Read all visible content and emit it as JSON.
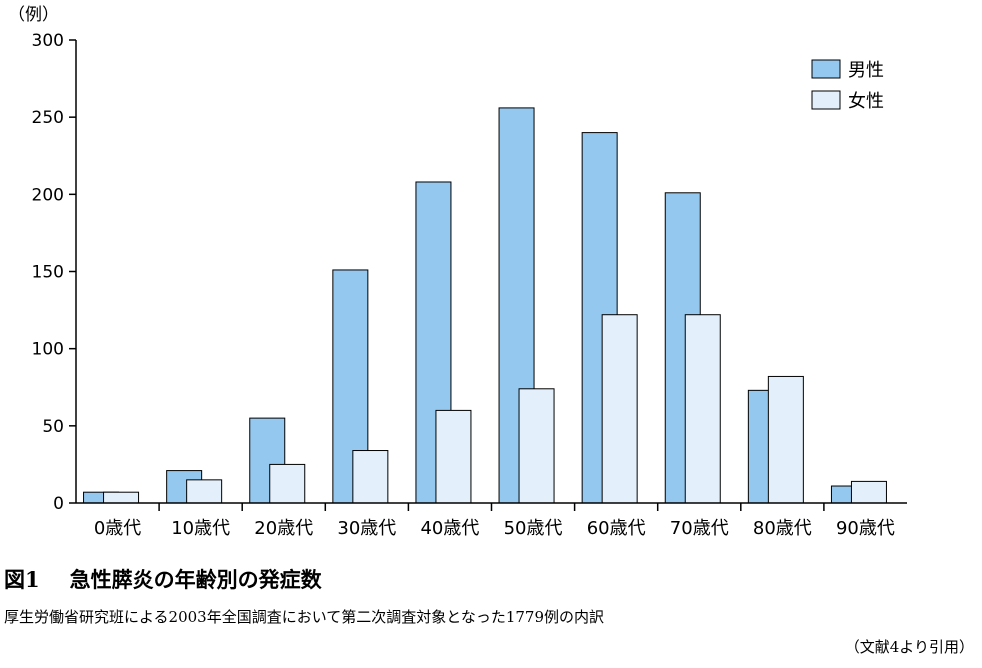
{
  "chart_data": {
    "type": "bar",
    "ylabel": "（例）",
    "ylim": [
      0,
      300
    ],
    "yticks": [
      "0",
      "50",
      "100",
      "150",
      "200",
      "250",
      "300"
    ],
    "categories": [
      "0歳代",
      "10歳代",
      "20歳代",
      "30歳代",
      "40歳代",
      "50歳代",
      "60歳代",
      "70歳代",
      "80歳代",
      "90歳代"
    ],
    "series": [
      {
        "name": "男性",
        "color": "#95c8ef",
        "values": [
          7,
          21,
          55,
          151,
          208,
          256,
          240,
          201,
          73,
          11
        ]
      },
      {
        "name": "女性",
        "color": "#e3effa",
        "values": [
          7,
          15,
          25,
          34,
          60,
          74,
          122,
          122,
          82,
          14
        ]
      }
    ],
    "legend_position": "top-right",
    "grid": false
  },
  "figure": {
    "label": "図1",
    "title": "急性膵炎の年齢別の発症数",
    "caption": "厚生労働省研究班による2003年全国調査において第二次調査対象となった1779例の内訳",
    "source": "（文献4より引用）"
  }
}
